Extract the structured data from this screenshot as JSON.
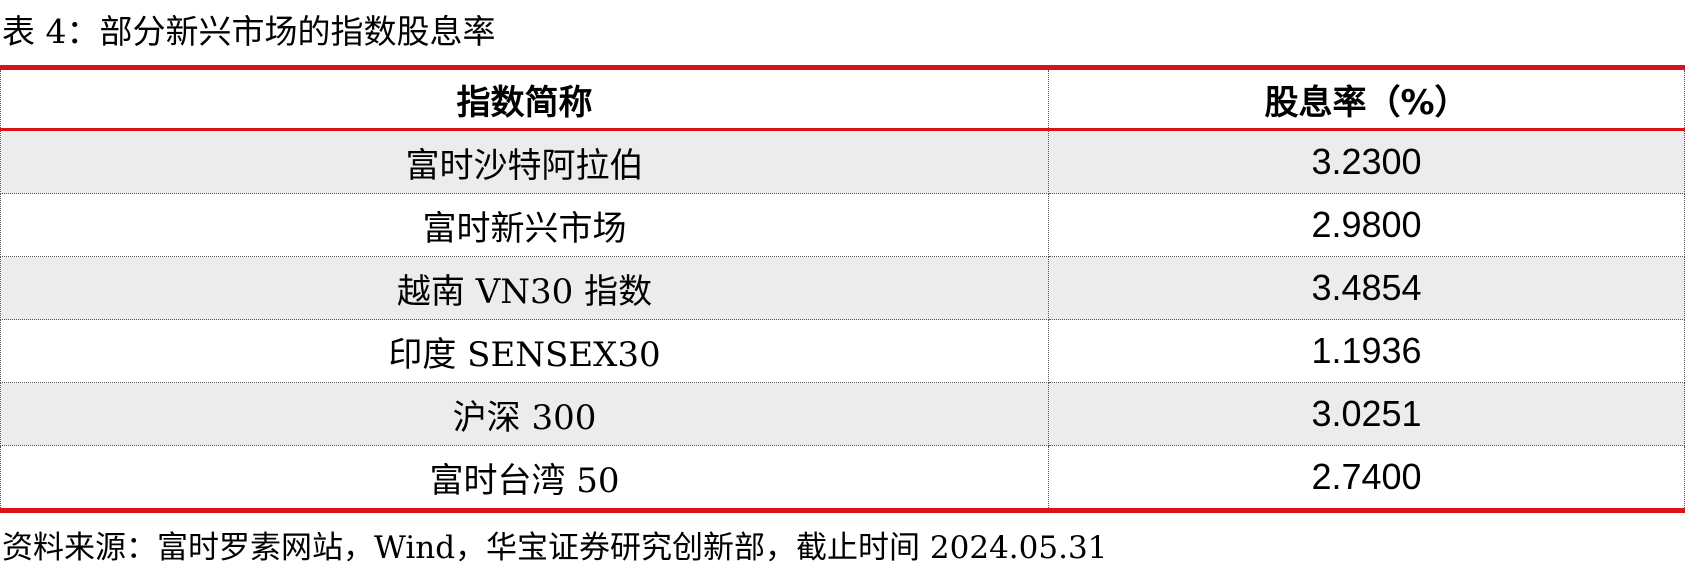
{
  "caption": "表 4：部分新兴市场的指数股息率",
  "table": {
    "headers": [
      "指数简称",
      "股息率（%）"
    ],
    "rows": [
      {
        "name": "富时沙特阿拉伯",
        "yield": "3.2300"
      },
      {
        "name": "富时新兴市场",
        "yield": "2.9800"
      },
      {
        "name": "越南 VN30 指数",
        "yield": "3.4854"
      },
      {
        "name": "印度 SENSEX30",
        "yield": "1.1936"
      },
      {
        "name": "沪深 300",
        "yield": "3.0251"
      },
      {
        "name": "富时台湾 50",
        "yield": "2.7400"
      }
    ]
  },
  "colors": {
    "rule": "#d7141a",
    "stripe": "#ececec"
  },
  "source": "资料来源：富时罗素网站，Wind，华宝证券研究创新部，截止时间 2024.05.31"
}
